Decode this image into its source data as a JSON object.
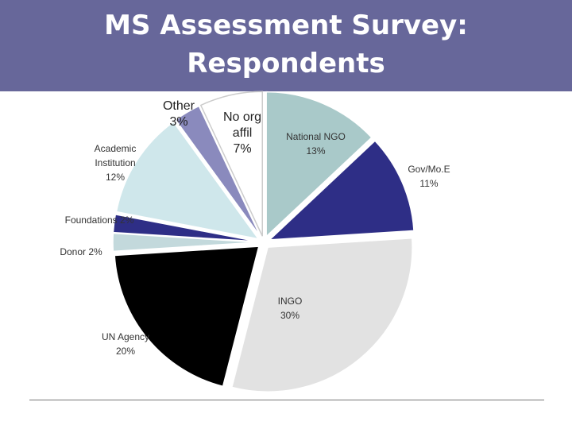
{
  "chart_data": {
    "type": "pie",
    "title": "MS Assessment Survey: Respondents",
    "categories": [
      "National NGO",
      "Gov/Mo.E",
      "INGO",
      "UN Agency",
      "Donor",
      "Foundations",
      "Academic Institution",
      "Other",
      "No org affil"
    ],
    "values": [
      13,
      11,
      30,
      20,
      2,
      2,
      12,
      3,
      7
    ],
    "value_labels": [
      "13%",
      "11%",
      "30%",
      "20%",
      "2%",
      "2%",
      "12%",
      "3%",
      "7%"
    ],
    "colors": [
      "#a9c9c9",
      "#2e2e86",
      "#e2e2e2",
      "#000000",
      "#c3d9dc",
      "#2e2e86",
      "#cfe7eb",
      "#8a8abd",
      "#ffffff"
    ]
  }
}
